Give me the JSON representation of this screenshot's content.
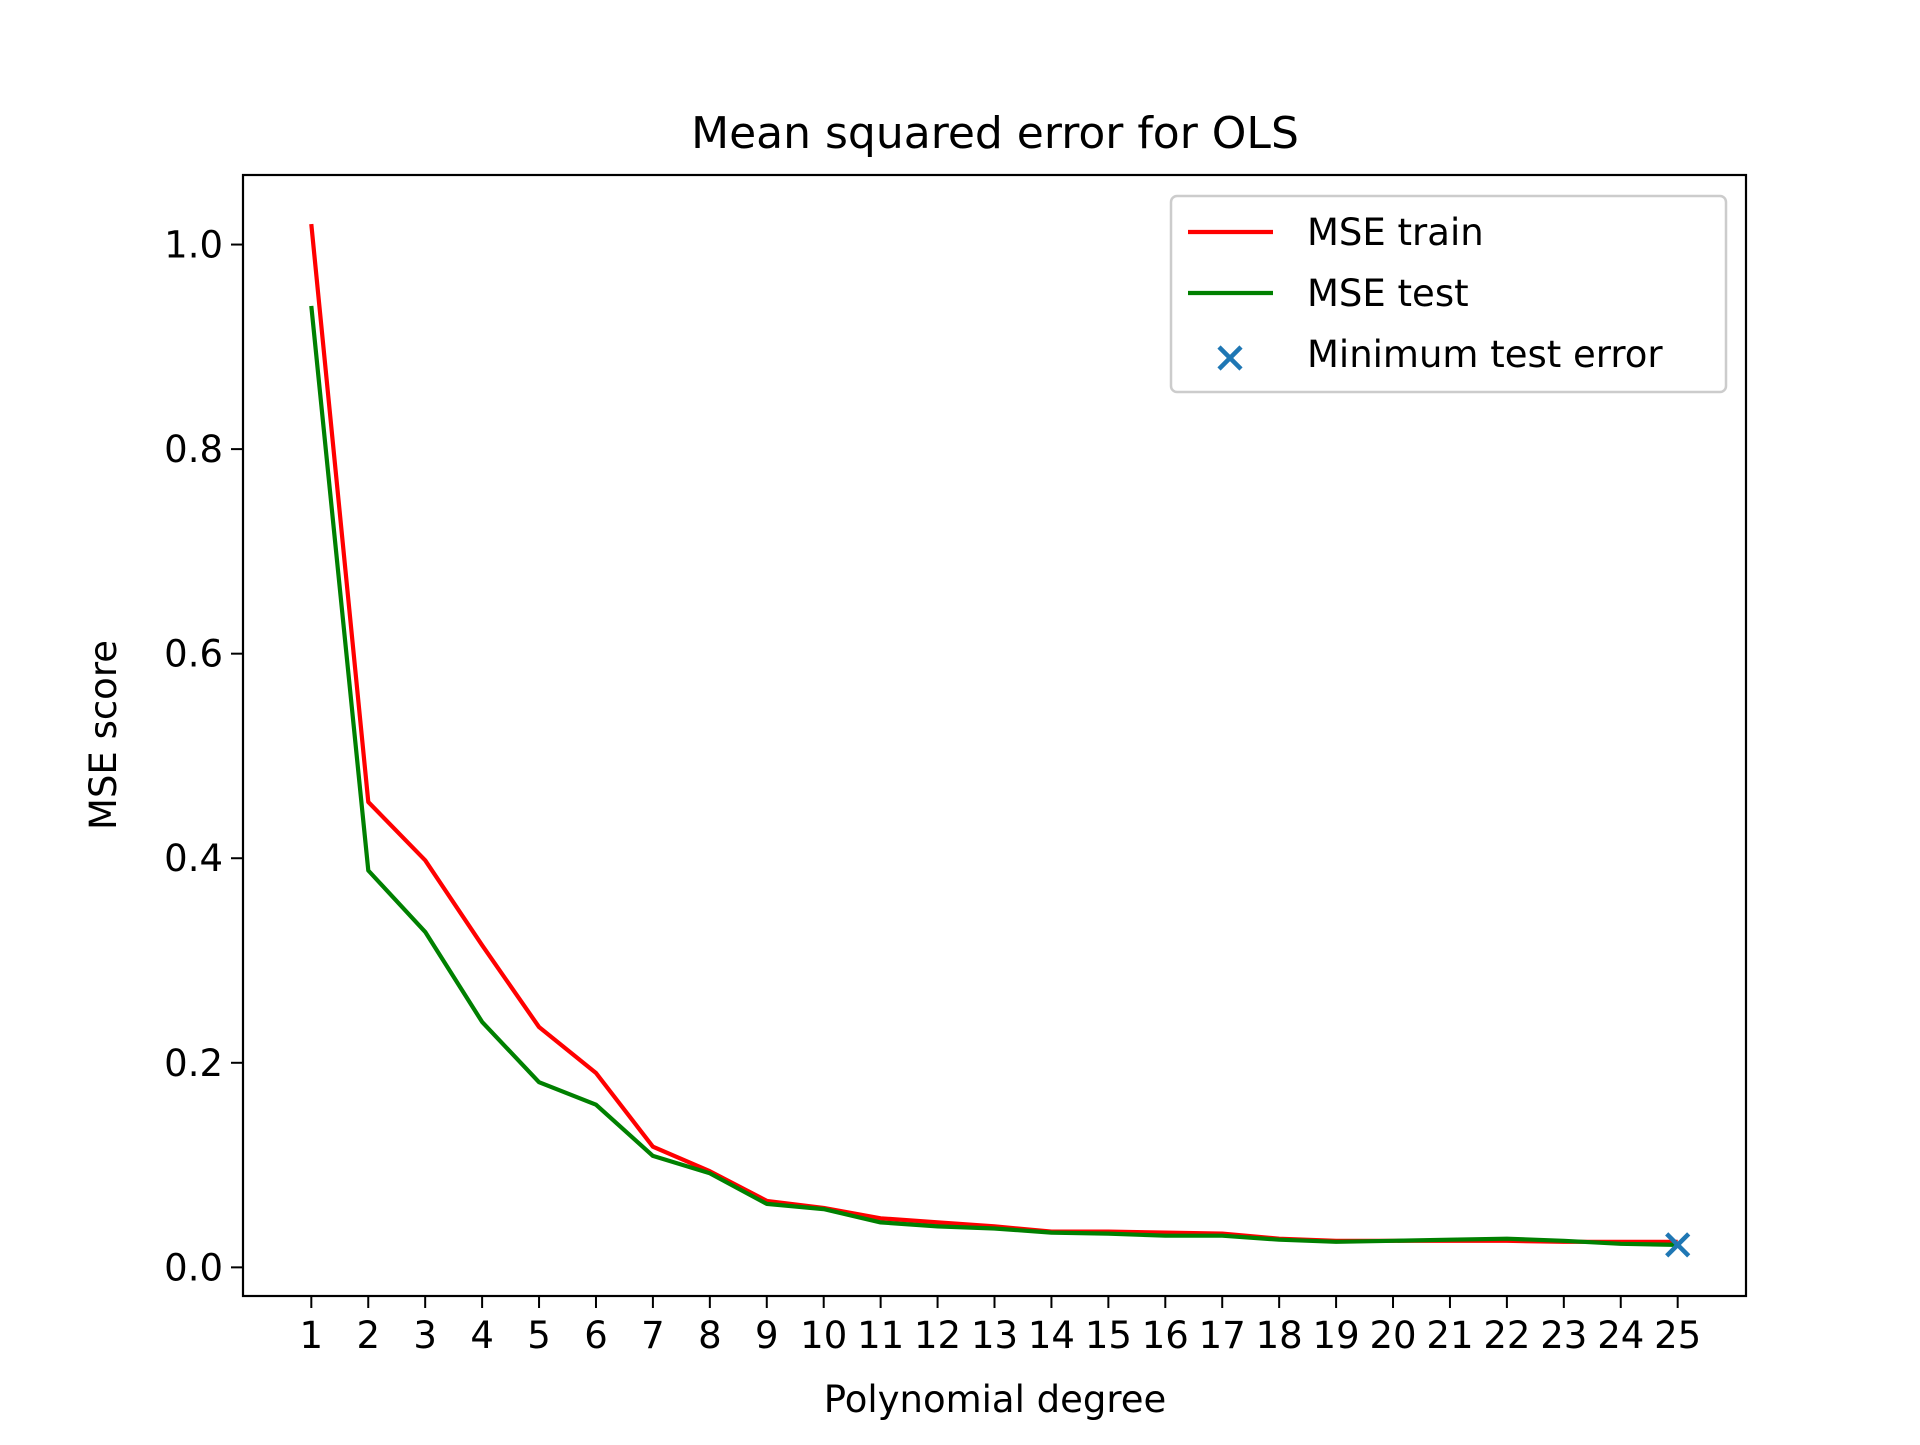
{
  "chart_data": {
    "type": "line",
    "title": "Mean squared error for OLS",
    "xlabel": "Polynomial degree",
    "ylabel": "MSE score",
    "x": [
      1,
      2,
      3,
      4,
      5,
      6,
      7,
      8,
      9,
      10,
      11,
      12,
      13,
      14,
      15,
      16,
      17,
      18,
      19,
      20,
      21,
      22,
      23,
      24,
      25
    ],
    "xticks": [
      "1",
      "2",
      "3",
      "4",
      "5",
      "6",
      "7",
      "8",
      "9",
      "10",
      "11",
      "12",
      "13",
      "14",
      "15",
      "16",
      "17",
      "18",
      "19",
      "20",
      "21",
      "22",
      "23",
      "24",
      "25"
    ],
    "yticks": [
      "0.0",
      "0.2",
      "0.4",
      "0.6",
      "0.8",
      "1.0"
    ],
    "ylim": [
      -0.028,
      1.068
    ],
    "xlim": [
      -0.2,
      26.2
    ],
    "grid": false,
    "legend_position": "upper right",
    "series": [
      {
        "name": "MSE train",
        "color": "#ff0000",
        "kind": "line",
        "values": [
          1.02,
          0.455,
          0.398,
          0.315,
          0.235,
          0.19,
          0.118,
          0.094,
          0.065,
          0.058,
          0.048,
          0.044,
          0.04,
          0.035,
          0.035,
          0.034,
          0.033,
          0.028,
          0.026,
          0.026,
          0.026,
          0.026,
          0.025,
          0.025,
          0.025
        ]
      },
      {
        "name": "MSE test",
        "color": "#008000",
        "kind": "line",
        "values": [
          0.94,
          0.388,
          0.328,
          0.24,
          0.181,
          0.159,
          0.109,
          0.092,
          0.062,
          0.057,
          0.044,
          0.04,
          0.038,
          0.034,
          0.033,
          0.031,
          0.031,
          0.027,
          0.025,
          0.026,
          0.027,
          0.028,
          0.026,
          0.023,
          0.022
        ]
      },
      {
        "name": "Minimum test error",
        "color": "#1f77b4",
        "kind": "scatter",
        "marker": "x",
        "points": [
          {
            "x": 25,
            "y": 0.022
          }
        ]
      }
    ]
  }
}
